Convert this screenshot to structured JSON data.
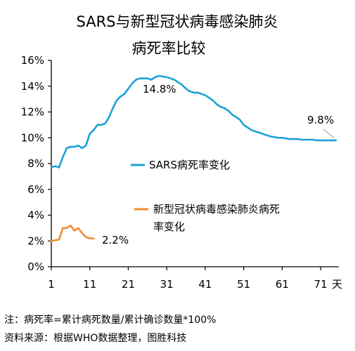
{
  "chart_data": {
    "type": "line",
    "title_line1": "SARS与新型冠状病毒感染肺炎",
    "title_line2": "病死率比较",
    "x_ticks": [
      "1",
      "11",
      "21",
      "31",
      "41",
      "51",
      "61",
      "71"
    ],
    "x_unit": "天",
    "y_ticks": [
      "0%",
      "2%",
      "4%",
      "6%",
      "8%",
      "10%",
      "12%",
      "14%",
      "16%"
    ],
    "xlim": [
      1,
      75
    ],
    "ylim": [
      0,
      16
    ],
    "grid": false,
    "series": [
      {
        "name": "SARS病死率变化",
        "color": "#1ba1d9",
        "x": [
          1,
          2,
          3,
          4,
          5,
          6,
          7,
          8,
          9,
          10,
          11,
          12,
          13,
          14,
          15,
          16,
          17,
          18,
          19,
          20,
          21,
          22,
          23,
          24,
          25,
          26,
          27,
          28,
          29,
          30,
          31,
          32,
          33,
          34,
          35,
          36,
          37,
          38,
          39,
          40,
          41,
          42,
          43,
          44,
          45,
          46,
          47,
          48,
          49,
          50,
          51,
          52,
          53,
          54,
          55,
          56,
          57,
          58,
          59,
          60,
          61,
          62,
          63,
          64,
          65,
          66,
          67,
          68,
          69,
          70,
          71,
          72,
          73,
          74,
          75
        ],
        "values": [
          7.7,
          7.8,
          7.7,
          8.5,
          9.2,
          9.3,
          9.3,
          9.4,
          9.2,
          9.4,
          10.3,
          10.6,
          11.0,
          11.0,
          11.1,
          11.6,
          12.3,
          12.9,
          13.2,
          13.4,
          13.8,
          14.2,
          14.5,
          14.6,
          14.6,
          14.6,
          14.5,
          14.7,
          14.8,
          14.75,
          14.7,
          14.6,
          14.5,
          14.3,
          14.1,
          13.8,
          13.6,
          13.5,
          13.5,
          13.4,
          13.3,
          13.1,
          12.9,
          12.6,
          12.4,
          12.3,
          12.1,
          11.8,
          11.6,
          11.4,
          11.0,
          10.8,
          10.6,
          10.5,
          10.4,
          10.3,
          10.2,
          10.1,
          10.05,
          10.0,
          10.0,
          9.95,
          9.9,
          9.9,
          9.9,
          9.85,
          9.85,
          9.85,
          9.85,
          9.8,
          9.8,
          9.8,
          9.8,
          9.8,
          9.8
        ]
      },
      {
        "name": "新型冠状病毒感染肺炎病死率变化",
        "legend_line1": "新型冠状病毒感染肺炎病死",
        "legend_line2": "率变化",
        "color": "#ef8c2f",
        "x": [
          1,
          2,
          3,
          4,
          5,
          6,
          7,
          8,
          9,
          10,
          11,
          12
        ],
        "values": [
          2.0,
          2.05,
          2.1,
          3.0,
          3.0,
          3.2,
          2.8,
          3.0,
          2.6,
          2.3,
          2.2,
          2.2
        ]
      }
    ],
    "annotations": [
      "14.8%",
      "9.8%",
      "2.2%"
    ],
    "footnote_1": "注：病死率=累计病死数量/累计确诊数量*100%",
    "footnote_2": "资料来源：根据WHO数据整理，图胜科技"
  }
}
